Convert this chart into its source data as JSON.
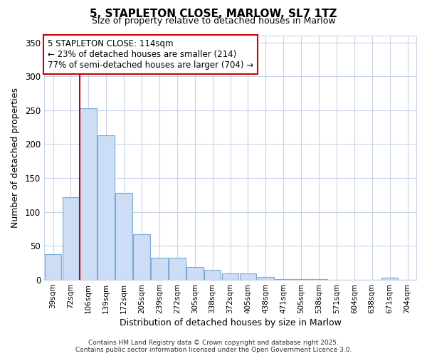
{
  "title_line1": "5, STAPLETON CLOSE, MARLOW, SL7 1TZ",
  "title_line2": "Size of property relative to detached houses in Marlow",
  "xlabel": "Distribution of detached houses by size in Marlow",
  "ylabel": "Number of detached properties",
  "categories": [
    "39sqm",
    "72sqm",
    "106sqm",
    "139sqm",
    "172sqm",
    "205sqm",
    "239sqm",
    "272sqm",
    "305sqm",
    "338sqm",
    "372sqm",
    "405sqm",
    "438sqm",
    "471sqm",
    "505sqm",
    "538sqm",
    "571sqm",
    "604sqm",
    "638sqm",
    "671sqm",
    "704sqm"
  ],
  "values": [
    38,
    122,
    253,
    213,
    128,
    67,
    33,
    33,
    19,
    15,
    10,
    10,
    4,
    1,
    1,
    1,
    0,
    0,
    0,
    3,
    0
  ],
  "bar_color": "#ccddf5",
  "bar_edge_color": "#7aaad4",
  "red_line_index": 2,
  "annotation_title": "5 STAPLETON CLOSE: 114sqm",
  "annotation_line2": "← 23% of detached houses are smaller (214)",
  "annotation_line3": "77% of semi-detached houses are larger (704) →",
  "annotation_box_color": "#ffffff",
  "annotation_border_color": "#cc0000",
  "red_line_color": "#cc0000",
  "ylim": [
    0,
    360
  ],
  "yticks": [
    0,
    50,
    100,
    150,
    200,
    250,
    300,
    350
  ],
  "footer_line1": "Contains HM Land Registry data © Crown copyright and database right 2025.",
  "footer_line2": "Contains public sector information licensed under the Open Government Licence 3.0.",
  "background_color": "#ffffff",
  "grid_color": "#c8d4e8"
}
